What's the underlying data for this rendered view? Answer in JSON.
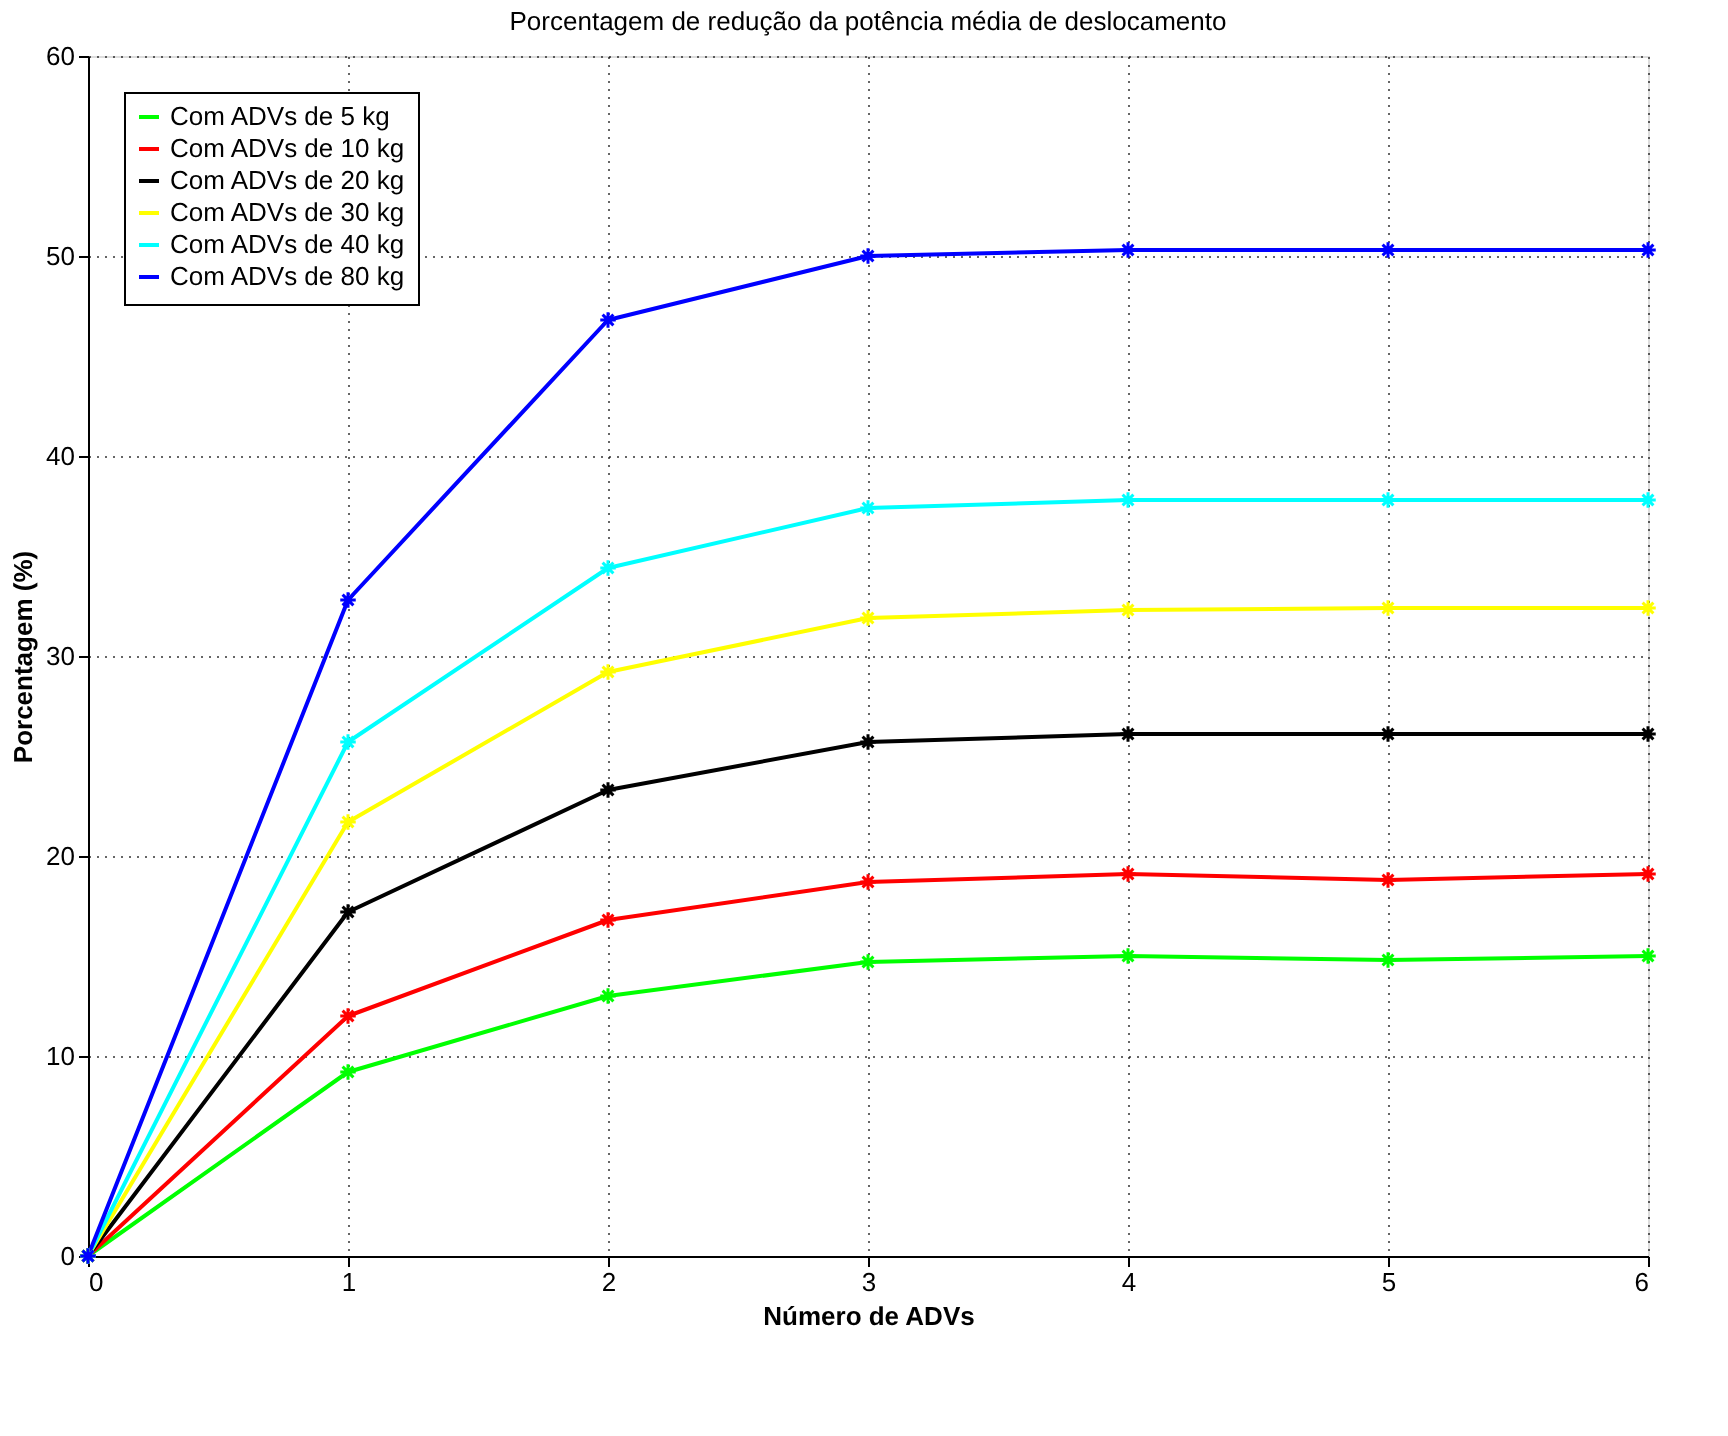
{
  "chart_data": {
    "type": "line",
    "title": "Porcentagem de redução da potência média de deslocamento",
    "xlabel": "Número de ADVs",
    "ylabel": "Porcentagem (%)",
    "x": [
      0,
      1,
      2,
      3,
      4,
      5,
      6
    ],
    "series": [
      {
        "name": "Com ADVs de 5 kg",
        "color": "#00ff00",
        "values": [
          0,
          9.2,
          13.0,
          14.7,
          15.0,
          14.8,
          15.0
        ]
      },
      {
        "name": "Com ADVs de 10 kg",
        "color": "#ff0000",
        "values": [
          0,
          12.0,
          16.8,
          18.7,
          19.1,
          18.8,
          19.1
        ]
      },
      {
        "name": "Com ADVs de 20 kg",
        "color": "#000000",
        "values": [
          0,
          17.2,
          23.3,
          25.7,
          26.1,
          26.1,
          26.1
        ]
      },
      {
        "name": "Com ADVs de 30 kg",
        "color": "#ffff00",
        "values": [
          0,
          21.7,
          29.2,
          31.9,
          32.3,
          32.4,
          32.4
        ]
      },
      {
        "name": "Com ADVs de 40 kg",
        "color": "#00ffff",
        "values": [
          0,
          25.7,
          34.4,
          37.4,
          37.8,
          37.8,
          37.8
        ]
      },
      {
        "name": "Com ADVs de 80 kg",
        "color": "#0000ff",
        "values": [
          0,
          32.8,
          46.8,
          50.0,
          50.3,
          50.3,
          50.3
        ]
      }
    ],
    "xlim": [
      0,
      6
    ],
    "xticks": [
      0,
      1,
      2,
      3,
      4,
      5,
      6
    ],
    "ylim": [
      0,
      60
    ],
    "yticks": [
      0,
      10,
      20,
      30,
      40,
      50,
      60
    ],
    "grid": true,
    "legend": "top left",
    "marker": "cross",
    "line_style": "solid"
  }
}
